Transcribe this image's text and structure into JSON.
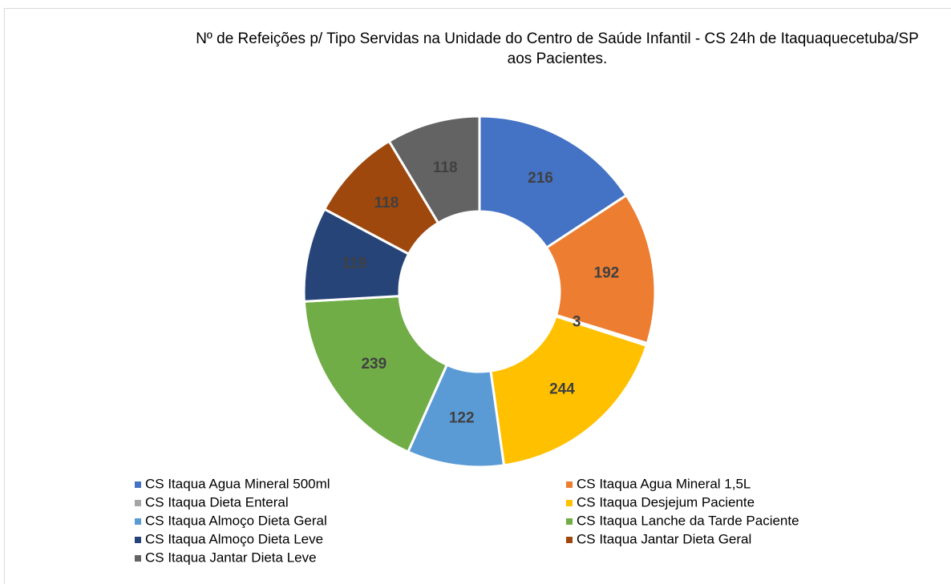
{
  "chart_data": {
    "type": "donut",
    "title": "Nº de Refeições p/ Tipo Servidas na Unidade do Centro de Saúde Infantil - CS 24h de Itaquaquecetuba/SP aos Pacientes.",
    "categories": [
      "CS  Itaqua Agua Mineral 500ml",
      "CS  Itaqua Agua Mineral 1,5L",
      "CS Itaqua Dieta Enteral",
      "CS  Itaqua Desjejum Paciente",
      "CS Itaqua Almoço Dieta Geral",
      "CS  Itaqua Lanche da Tarde Paciente",
      "CS Itaqua Almoço Dieta Leve",
      "CS Itaqua Jantar Dieta Geral",
      "CS Itaqua Jantar Dieta Leve"
    ],
    "values": [
      216,
      192,
      3,
      244,
      122,
      239,
      119,
      118,
      118
    ],
    "colors": [
      "#4472c4",
      "#ed7d31",
      "#a5a5a5",
      "#ffc000",
      "#5b9bd5",
      "#70ad47",
      "#264478",
      "#9e480e",
      "#636363"
    ],
    "legend": "bottom"
  }
}
